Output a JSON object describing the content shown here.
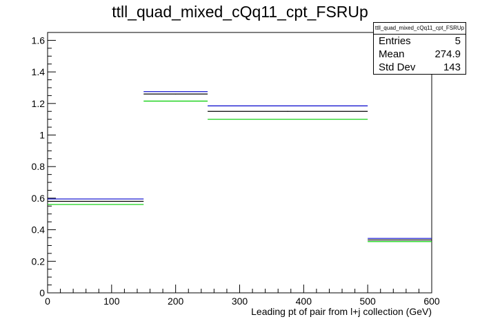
{
  "title": "ttll_quad_mixed_cQq11_cpt_FSRUp",
  "stats": {
    "name": "ttll_quad_mixed_cQq11_cpt_FSRUp",
    "rows": [
      {
        "label": "Entries",
        "value": "5"
      },
      {
        "label": "Mean",
        "value": "274.9"
      },
      {
        "label": "Std Dev",
        "value": "143"
      }
    ]
  },
  "chart_data": {
    "type": "line",
    "title": "ttll_quad_mixed_cQq11_cpt_FSRUp",
    "xlabel": "Leading pt of pair from l+j collection (GeV)",
    "ylabel": "",
    "xlim": [
      0,
      600
    ],
    "ylim": [
      0,
      1.65
    ],
    "x_ticks": [
      "0",
      "100",
      "200",
      "300",
      "400",
      "500",
      "600"
    ],
    "y_ticks": [
      "0",
      "0.2",
      "0.4",
      "0.6",
      "0.8",
      "1",
      "1.2",
      "1.4",
      "1.6"
    ],
    "bin_edges": [
      0,
      150,
      250,
      500,
      600
    ],
    "series": [
      {
        "color": "#000000",
        "values": [
          0.58,
          1.26,
          1.15,
          0.335
        ]
      },
      {
        "color": "#0000cc",
        "values": [
          0.595,
          1.275,
          1.185,
          0.345
        ]
      },
      {
        "color": "#00cc00",
        "values": [
          0.56,
          1.215,
          1.1,
          0.325
        ]
      }
    ]
  }
}
